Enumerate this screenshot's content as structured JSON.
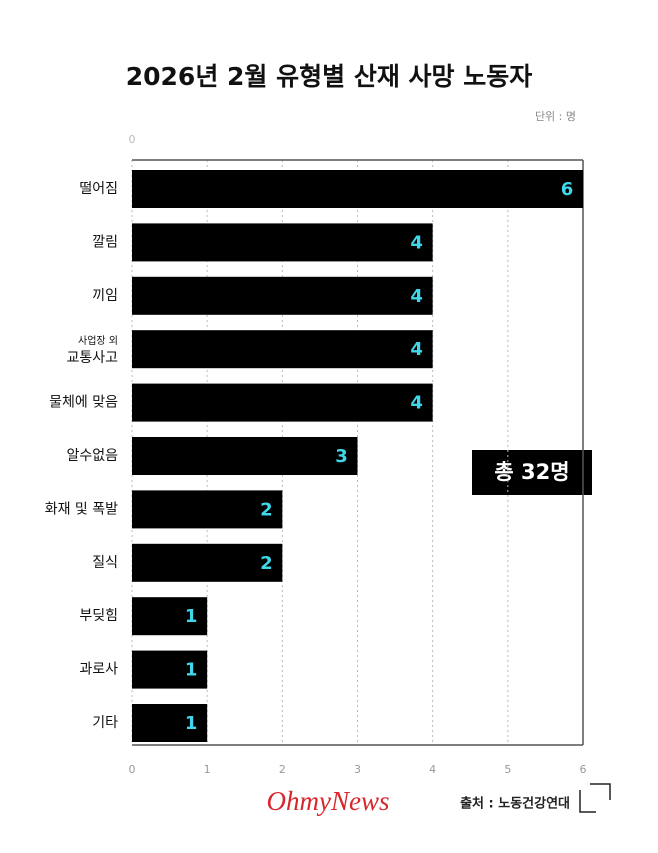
{
  "chart_data": {
    "type": "hbar",
    "title": "2026년 2월 유형별 산재 사망 노동자",
    "unit": "단위 : 명",
    "categories": [
      "떨어짐",
      "깔림",
      "끼임",
      "사업장 외\n교통사고",
      "물체에 맞음",
      "알수없음",
      "화재 및 폭발",
      "질식",
      "부딪힘",
      "과로사",
      "기타"
    ],
    "values": [
      6,
      4,
      4,
      4,
      4,
      3,
      2,
      2,
      1,
      1,
      1
    ],
    "color": "#000000",
    "value_label_color": "#3fd8ea",
    "xlim": [
      0,
      6
    ],
    "xticks": [
      0,
      1,
      2,
      3,
      4,
      5,
      6
    ],
    "grid": true,
    "annotation": "총 32명",
    "source": "출처 : 노동건강연대",
    "logo": "OhmyNews"
  }
}
